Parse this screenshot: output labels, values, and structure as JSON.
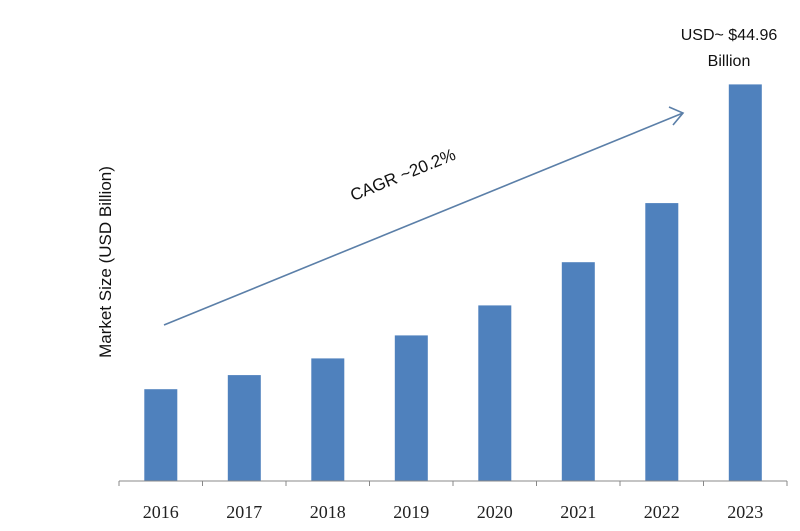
{
  "chart_data": {
    "type": "bar",
    "title": "",
    "xlabel": "",
    "ylabel": "Market Size (USD Billion)",
    "categories": [
      "2016",
      "2017",
      "2018",
      "2019",
      "2020",
      "2021",
      "2022",
      "2023"
    ],
    "values": [
      10.4,
      12.0,
      13.9,
      16.5,
      19.9,
      24.8,
      31.5,
      44.96
    ],
    "ylim": [
      0,
      45.0
    ],
    "grid": false,
    "legend": "none",
    "bar_color": "#4f81bd",
    "annotations": {
      "cagr": "CAGR ~20.2%",
      "value_line1": "USD~ $44.96",
      "value_line2": "Billion"
    },
    "trend_arrow_color": "#5b7fa8"
  }
}
